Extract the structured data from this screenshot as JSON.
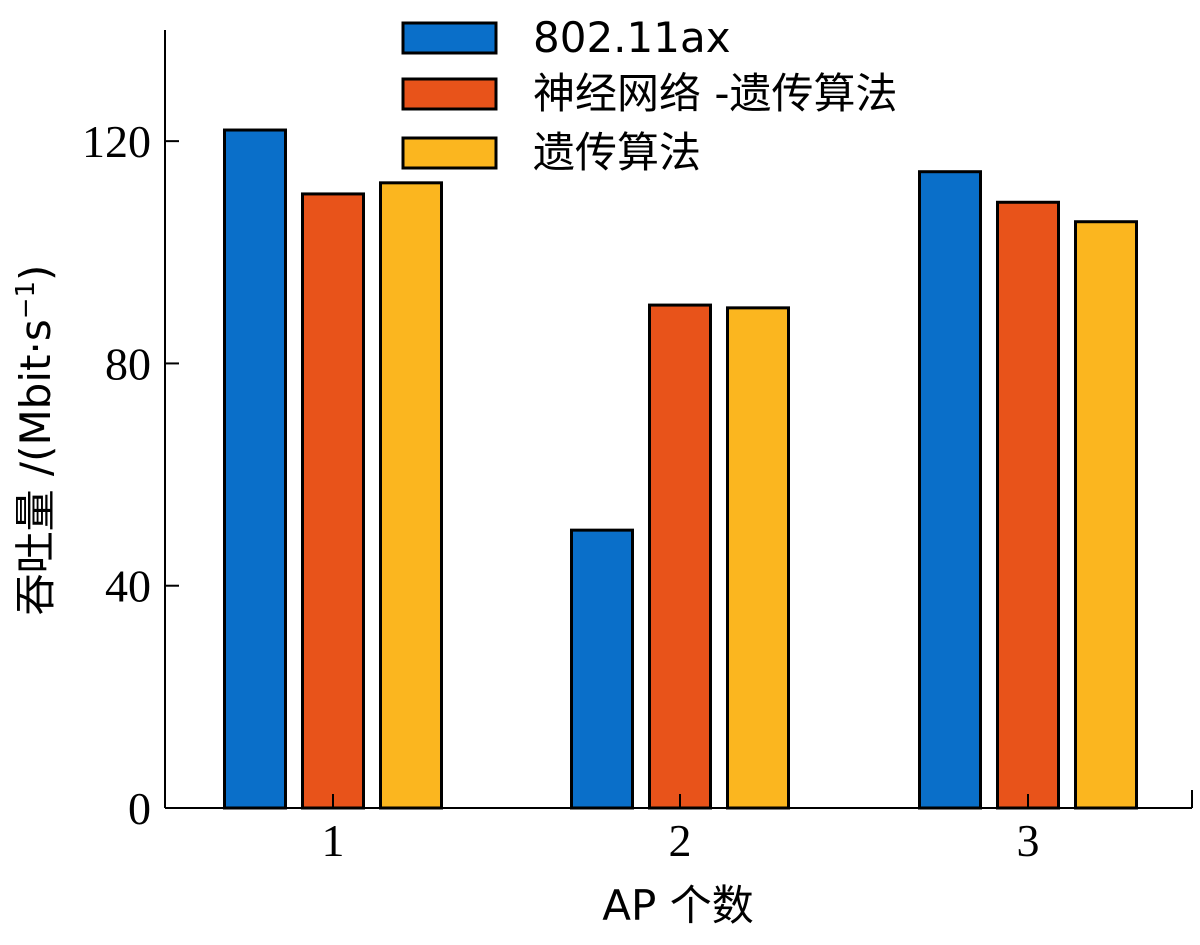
{
  "chart_data": {
    "type": "bar",
    "categories": [
      "1",
      "2",
      "3"
    ],
    "series": [
      {
        "name": "802.11ax",
        "values": [
          122,
          50,
          114.5
        ],
        "color": "#0a6fc9"
      },
      {
        "name": "神经网络 -遗传算法",
        "values": [
          110.5,
          90.5,
          109
        ],
        "color": "#e8531a"
      },
      {
        "name": "遗传算法",
        "values": [
          112.5,
          90,
          105.5
        ],
        "color": "#fbb61f"
      }
    ],
    "xlabel": "AP 个数",
    "ylabel": "吞吐量 /(Mbit·s",
    "ylabel_sup": "−1",
    "ylabel_close": ")",
    "yticks": [
      0,
      40,
      80,
      120
    ],
    "ylim": [
      0,
      140
    ],
    "legend_position": "top-center",
    "grid": false
  }
}
